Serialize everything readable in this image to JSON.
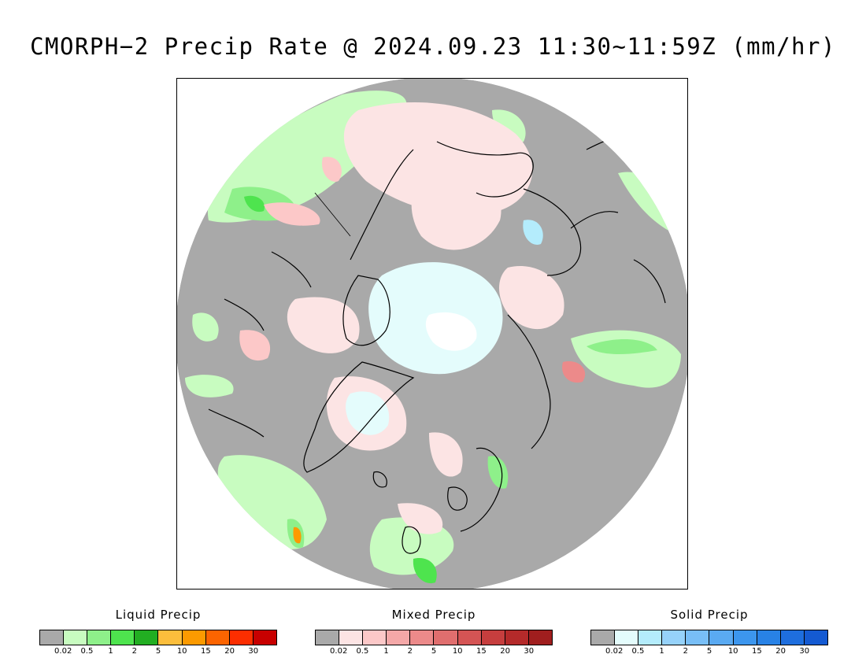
{
  "title": "CMORPH−2 Precip Rate @ 2024.09.23 11:30~11:59Z (mm/hr)",
  "colors": {
    "no_precip": "#a9a9a9",
    "ocean_background": "#a9a9a9",
    "coastline": "#000000"
  },
  "legends": [
    {
      "id": "liquid",
      "title": "Liquid Precip",
      "ticks": [
        "0.02",
        "0.5",
        "1",
        "2",
        "5",
        "10",
        "15",
        "20",
        "30"
      ],
      "colors": [
        "#a9a9a9",
        "#c8fcc0",
        "#8ef08a",
        "#4ee44e",
        "#22ae22",
        "#fcbe3c",
        "#fc9a00",
        "#fc6400",
        "#fc2e00",
        "#c80000"
      ]
    },
    {
      "id": "mixed",
      "title": "Mixed Precip",
      "ticks": [
        "0.02",
        "0.5",
        "1",
        "2",
        "5",
        "10",
        "15",
        "20",
        "30"
      ],
      "colors": [
        "#a9a9a9",
        "#fce4e4",
        "#fcc8c8",
        "#f4a8a8",
        "#ec8a8a",
        "#e06e6e",
        "#d45454",
        "#c63e3e",
        "#b42a2a",
        "#a01e1e"
      ]
    },
    {
      "id": "solid",
      "title": "Solid Precip",
      "ticks": [
        "0.02",
        "0.5",
        "1",
        "2",
        "5",
        "10",
        "15",
        "20",
        "30"
      ],
      "colors": [
        "#a9a9a9",
        "#e4fcfc",
        "#b4ecfc",
        "#96d2fa",
        "#78bef6",
        "#5aaaf2",
        "#3c96ee",
        "#2882e6",
        "#1e6ede",
        "#145ad2"
      ]
    }
  ]
}
